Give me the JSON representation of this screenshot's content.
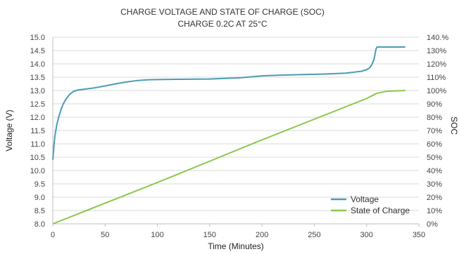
{
  "chart_data": {
    "type": "line",
    "title": "CHARGE VOLTAGE AND STATE OF CHARGE (SOC)",
    "subtitle": "CHARGE 0.2C AT 25°C",
    "xlabel": "Time (Minutes)",
    "ylabel": "Voltage (V)",
    "y2label": "SOC",
    "xlim": [
      0,
      350
    ],
    "ylim": [
      8.0,
      15.0
    ],
    "y2lim": [
      0,
      140
    ],
    "x_ticks": [
      "0",
      "50",
      "100",
      "150",
      "200",
      "250",
      "300",
      "350"
    ],
    "y_ticks": [
      "8.0",
      "8.5",
      "9.0",
      "9.5",
      "10.0",
      "10.5",
      "11.0",
      "11.5",
      "12.0",
      "12.5",
      "13.0",
      "13.5",
      "14.0",
      "14.5",
      "15.0"
    ],
    "y2_ticks": [
      "0%",
      "10%",
      "20%",
      "30%",
      "40%",
      "50%",
      "60%",
      "70%",
      "80%",
      "90%",
      "100%",
      "110%",
      "120%",
      "130%",
      "140.%"
    ],
    "grid": true,
    "legend_position": "bottom-right",
    "series": [
      {
        "name": "Voltage",
        "color": "#4a9bb5",
        "axis": "left",
        "x": [
          0,
          1,
          2,
          4,
          6,
          8,
          10,
          13,
          16,
          20,
          24,
          30,
          40,
          50,
          60,
          70,
          80,
          90,
          100,
          120,
          150,
          180,
          200,
          220,
          240,
          260,
          280,
          295,
          300,
          303,
          305,
          307,
          308,
          309,
          310,
          312,
          320,
          337
        ],
        "y": [
          10.4,
          10.9,
          11.3,
          11.75,
          12.05,
          12.3,
          12.5,
          12.7,
          12.85,
          12.97,
          13.02,
          13.05,
          13.1,
          13.17,
          13.25,
          13.32,
          13.37,
          13.4,
          13.41,
          13.42,
          13.43,
          13.48,
          13.55,
          13.58,
          13.6,
          13.62,
          13.65,
          13.72,
          13.78,
          13.85,
          13.97,
          14.15,
          14.35,
          14.55,
          14.63,
          14.63,
          14.63,
          14.63
        ]
      },
      {
        "name": "State of Charge",
        "color": "#8cc84b",
        "axis": "right",
        "x": [
          0,
          100,
          200,
          300,
          310,
          320,
          337
        ],
        "y": [
          0,
          31,
          63,
          94,
          98,
          99.5,
          100
        ]
      }
    ]
  }
}
